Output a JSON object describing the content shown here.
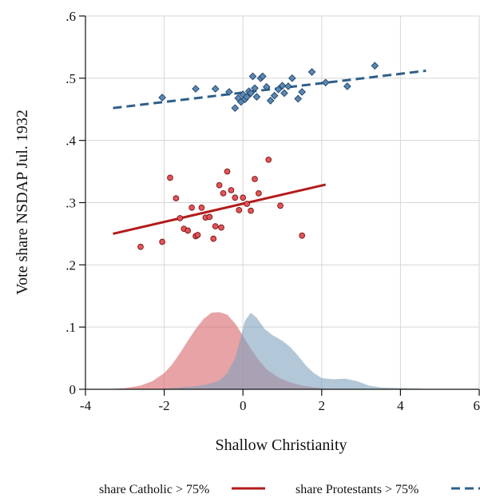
{
  "chart_data": {
    "type": "scatter",
    "xlabel": "Shallow Christianity",
    "ylabel": "Vote share NSDAP Jul. 1932",
    "xlim": [
      -4,
      6
    ],
    "ylim": [
      0,
      0.6
    ],
    "x_ticks": [
      {
        "value": -4,
        "label": "-4"
      },
      {
        "value": -2,
        "label": "-2"
      },
      {
        "value": 0,
        "label": "0"
      },
      {
        "value": 2,
        "label": "2"
      },
      {
        "value": 4,
        "label": "4"
      },
      {
        "value": 6,
        "label": "6"
      }
    ],
    "y_ticks": [
      {
        "value": 0,
        "label": "0"
      },
      {
        "value": 0.1,
        "label": ".1"
      },
      {
        "value": 0.2,
        "label": ".2"
      },
      {
        "value": 0.3,
        "label": ".3"
      },
      {
        "value": 0.4,
        "label": ".4"
      },
      {
        "value": 0.5,
        "label": ".5"
      },
      {
        "value": 0.6,
        "label": ".6"
      }
    ],
    "grid": true,
    "legend_position": "bottom",
    "series": [
      {
        "name": "share Catholic > 75%",
        "color": "#b31b1b",
        "marker": "circle",
        "line_style": "solid",
        "points": [
          [
            -2.6,
            0.229
          ],
          [
            -2.05,
            0.237
          ],
          [
            -1.85,
            0.34
          ],
          [
            -1.7,
            0.307
          ],
          [
            -1.6,
            0.275
          ],
          [
            -1.5,
            0.258
          ],
          [
            -1.4,
            0.255
          ],
          [
            -1.3,
            0.292
          ],
          [
            -1.2,
            0.246
          ],
          [
            -1.15,
            0.248
          ],
          [
            -1.05,
            0.292
          ],
          [
            -0.95,
            0.276
          ],
          [
            -0.85,
            0.277
          ],
          [
            -0.75,
            0.242
          ],
          [
            -0.7,
            0.262
          ],
          [
            -0.6,
            0.328
          ],
          [
            -0.55,
            0.26
          ],
          [
            -0.5,
            0.315
          ],
          [
            -0.4,
            0.35
          ],
          [
            -0.3,
            0.32
          ],
          [
            -0.2,
            0.308
          ],
          [
            -0.1,
            0.288
          ],
          [
            0.0,
            0.308
          ],
          [
            0.1,
            0.298
          ],
          [
            0.2,
            0.287
          ],
          [
            0.3,
            0.338
          ],
          [
            0.4,
            0.315
          ],
          [
            0.65,
            0.369
          ],
          [
            0.95,
            0.295
          ],
          [
            1.5,
            0.247
          ]
        ],
        "fit": [
          [
            -3.3,
            0.25
          ],
          [
            2.1,
            0.329
          ]
        ],
        "density": [
          [
            -3.5,
            0.0
          ],
          [
            -3.0,
            0.002
          ],
          [
            -2.6,
            0.006
          ],
          [
            -2.3,
            0.013
          ],
          [
            -2.0,
            0.026
          ],
          [
            -1.8,
            0.04
          ],
          [
            -1.6,
            0.058
          ],
          [
            -1.4,
            0.078
          ],
          [
            -1.2,
            0.097
          ],
          [
            -1.0,
            0.113
          ],
          [
            -0.8,
            0.123
          ],
          [
            -0.6,
            0.124
          ],
          [
            -0.4,
            0.12
          ],
          [
            -0.2,
            0.106
          ],
          [
            0.0,
            0.086
          ],
          [
            0.2,
            0.065
          ],
          [
            0.4,
            0.047
          ],
          [
            0.6,
            0.032
          ],
          [
            0.9,
            0.019
          ],
          [
            1.2,
            0.011
          ],
          [
            1.5,
            0.006
          ],
          [
            1.8,
            0.003
          ],
          [
            2.1,
            0.001
          ],
          [
            2.4,
            0.0
          ]
        ]
      },
      {
        "name": "share Protestants > 75%",
        "color": "#2e5f8a",
        "marker": "diamond",
        "line_style": "dashed",
        "points": [
          [
            -2.05,
            0.469
          ],
          [
            -1.2,
            0.483
          ],
          [
            -0.7,
            0.483
          ],
          [
            -0.35,
            0.478
          ],
          [
            -0.2,
            0.452
          ],
          [
            -0.12,
            0.468
          ],
          [
            -0.05,
            0.462
          ],
          [
            0.0,
            0.474
          ],
          [
            0.05,
            0.466
          ],
          [
            0.1,
            0.47
          ],
          [
            0.15,
            0.479
          ],
          [
            0.2,
            0.476
          ],
          [
            0.25,
            0.503
          ],
          [
            0.3,
            0.484
          ],
          [
            0.35,
            0.47
          ],
          [
            0.45,
            0.5
          ],
          [
            0.5,
            0.503
          ],
          [
            0.6,
            0.486
          ],
          [
            0.7,
            0.464
          ],
          [
            0.8,
            0.472
          ],
          [
            0.9,
            0.482
          ],
          [
            1.0,
            0.488
          ],
          [
            1.05,
            0.476
          ],
          [
            1.15,
            0.487
          ],
          [
            1.25,
            0.5
          ],
          [
            1.4,
            0.467
          ],
          [
            1.5,
            0.478
          ],
          [
            1.75,
            0.51
          ],
          [
            2.1,
            0.493
          ],
          [
            2.65,
            0.487
          ],
          [
            3.35,
            0.52
          ]
        ],
        "fit": [
          [
            -3.3,
            0.452
          ],
          [
            4.65,
            0.512
          ]
        ],
        "density": [
          [
            -2.4,
            0.0
          ],
          [
            -2.0,
            0.001
          ],
          [
            -1.6,
            0.003
          ],
          [
            -1.2,
            0.005
          ],
          [
            -0.9,
            0.008
          ],
          [
            -0.6,
            0.014
          ],
          [
            -0.4,
            0.026
          ],
          [
            -0.2,
            0.05
          ],
          [
            -0.05,
            0.085
          ],
          [
            0.05,
            0.11
          ],
          [
            0.2,
            0.123
          ],
          [
            0.35,
            0.115
          ],
          [
            0.55,
            0.097
          ],
          [
            0.75,
            0.087
          ],
          [
            1.0,
            0.078
          ],
          [
            1.2,
            0.068
          ],
          [
            1.4,
            0.054
          ],
          [
            1.6,
            0.038
          ],
          [
            1.8,
            0.026
          ],
          [
            2.0,
            0.018
          ],
          [
            2.3,
            0.016
          ],
          [
            2.6,
            0.017
          ],
          [
            2.9,
            0.013
          ],
          [
            3.2,
            0.006
          ],
          [
            3.5,
            0.003
          ],
          [
            4.0,
            0.002
          ],
          [
            4.5,
            0.001
          ],
          [
            4.9,
            0.0
          ]
        ]
      }
    ]
  }
}
